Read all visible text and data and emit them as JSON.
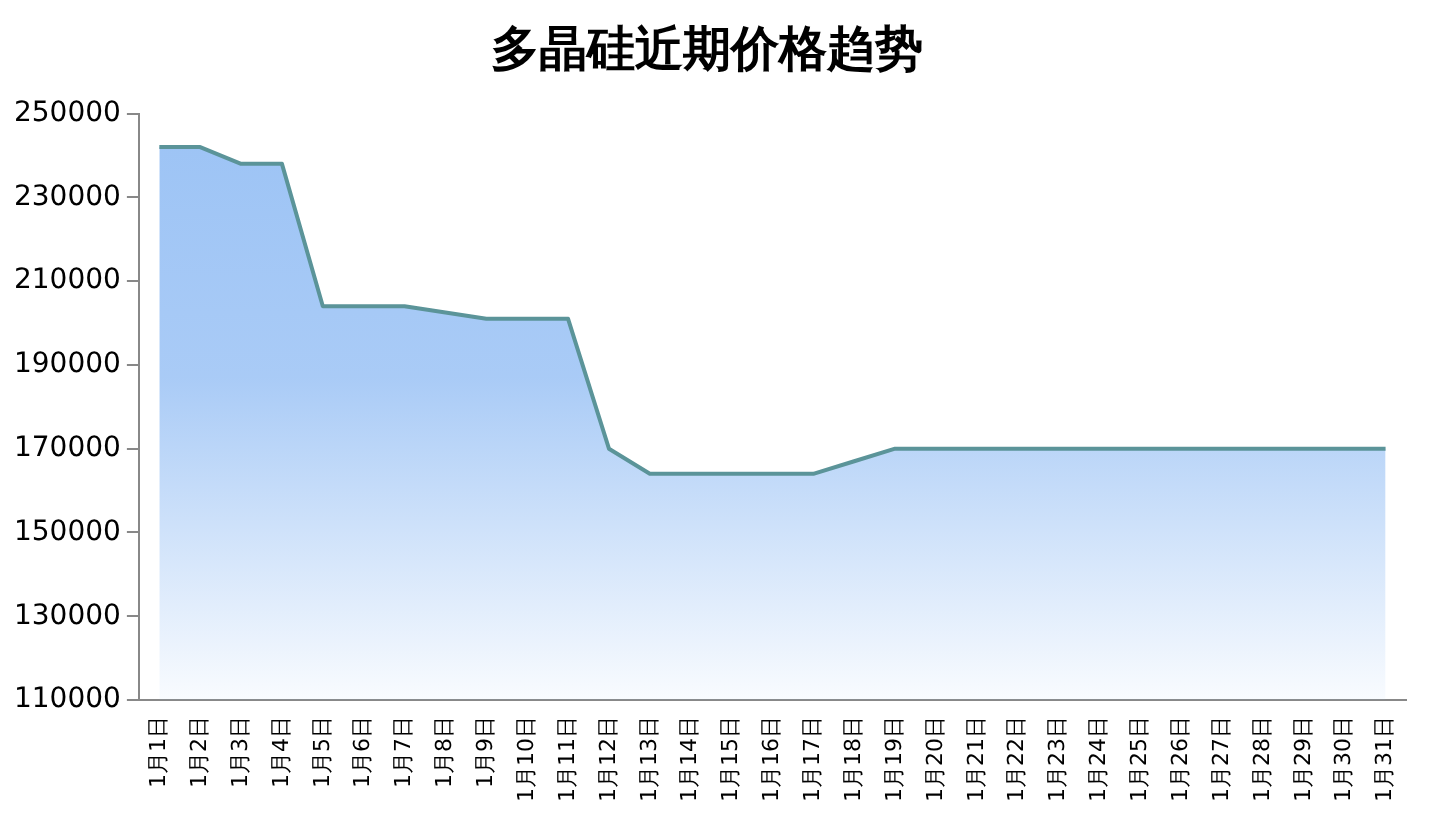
{
  "chart_data": {
    "type": "area",
    "title": "多晶硅近期价格趋势",
    "categories": [
      "1月1日",
      "1月2日",
      "1月3日",
      "1月4日",
      "1月5日",
      "1月6日",
      "1月7日",
      "1月8日",
      "1月9日",
      "1月10日",
      "1月11日",
      "1月12日",
      "1月13日",
      "1月14日",
      "1月15日",
      "1月16日",
      "1月17日",
      "1月18日",
      "1月19日",
      "1月20日",
      "1月21日",
      "1月22日",
      "1月23日",
      "1月24日",
      "1月25日",
      "1月26日",
      "1月27日",
      "1月28日",
      "1月29日",
      "1月30日",
      "1月31日"
    ],
    "series": [
      {
        "color": "#9cc3f5",
        "values": [
          242000,
          242000,
          238000,
          238000,
          204000,
          204000,
          204000,
          202500,
          201000,
          201000,
          201000,
          170000,
          164000,
          164000,
          164000,
          164000,
          164000,
          167000,
          170000,
          170000,
          170000,
          170000,
          170000,
          170000,
          170000,
          170000,
          170000,
          170000,
          170000,
          170000,
          170000
        ]
      }
    ],
    "ylim": [
      110000,
      250000
    ],
    "yticks": [
      110000,
      130000,
      150000,
      170000,
      190000,
      210000,
      230000,
      250000
    ],
    "grid": false,
    "legend": false
  }
}
